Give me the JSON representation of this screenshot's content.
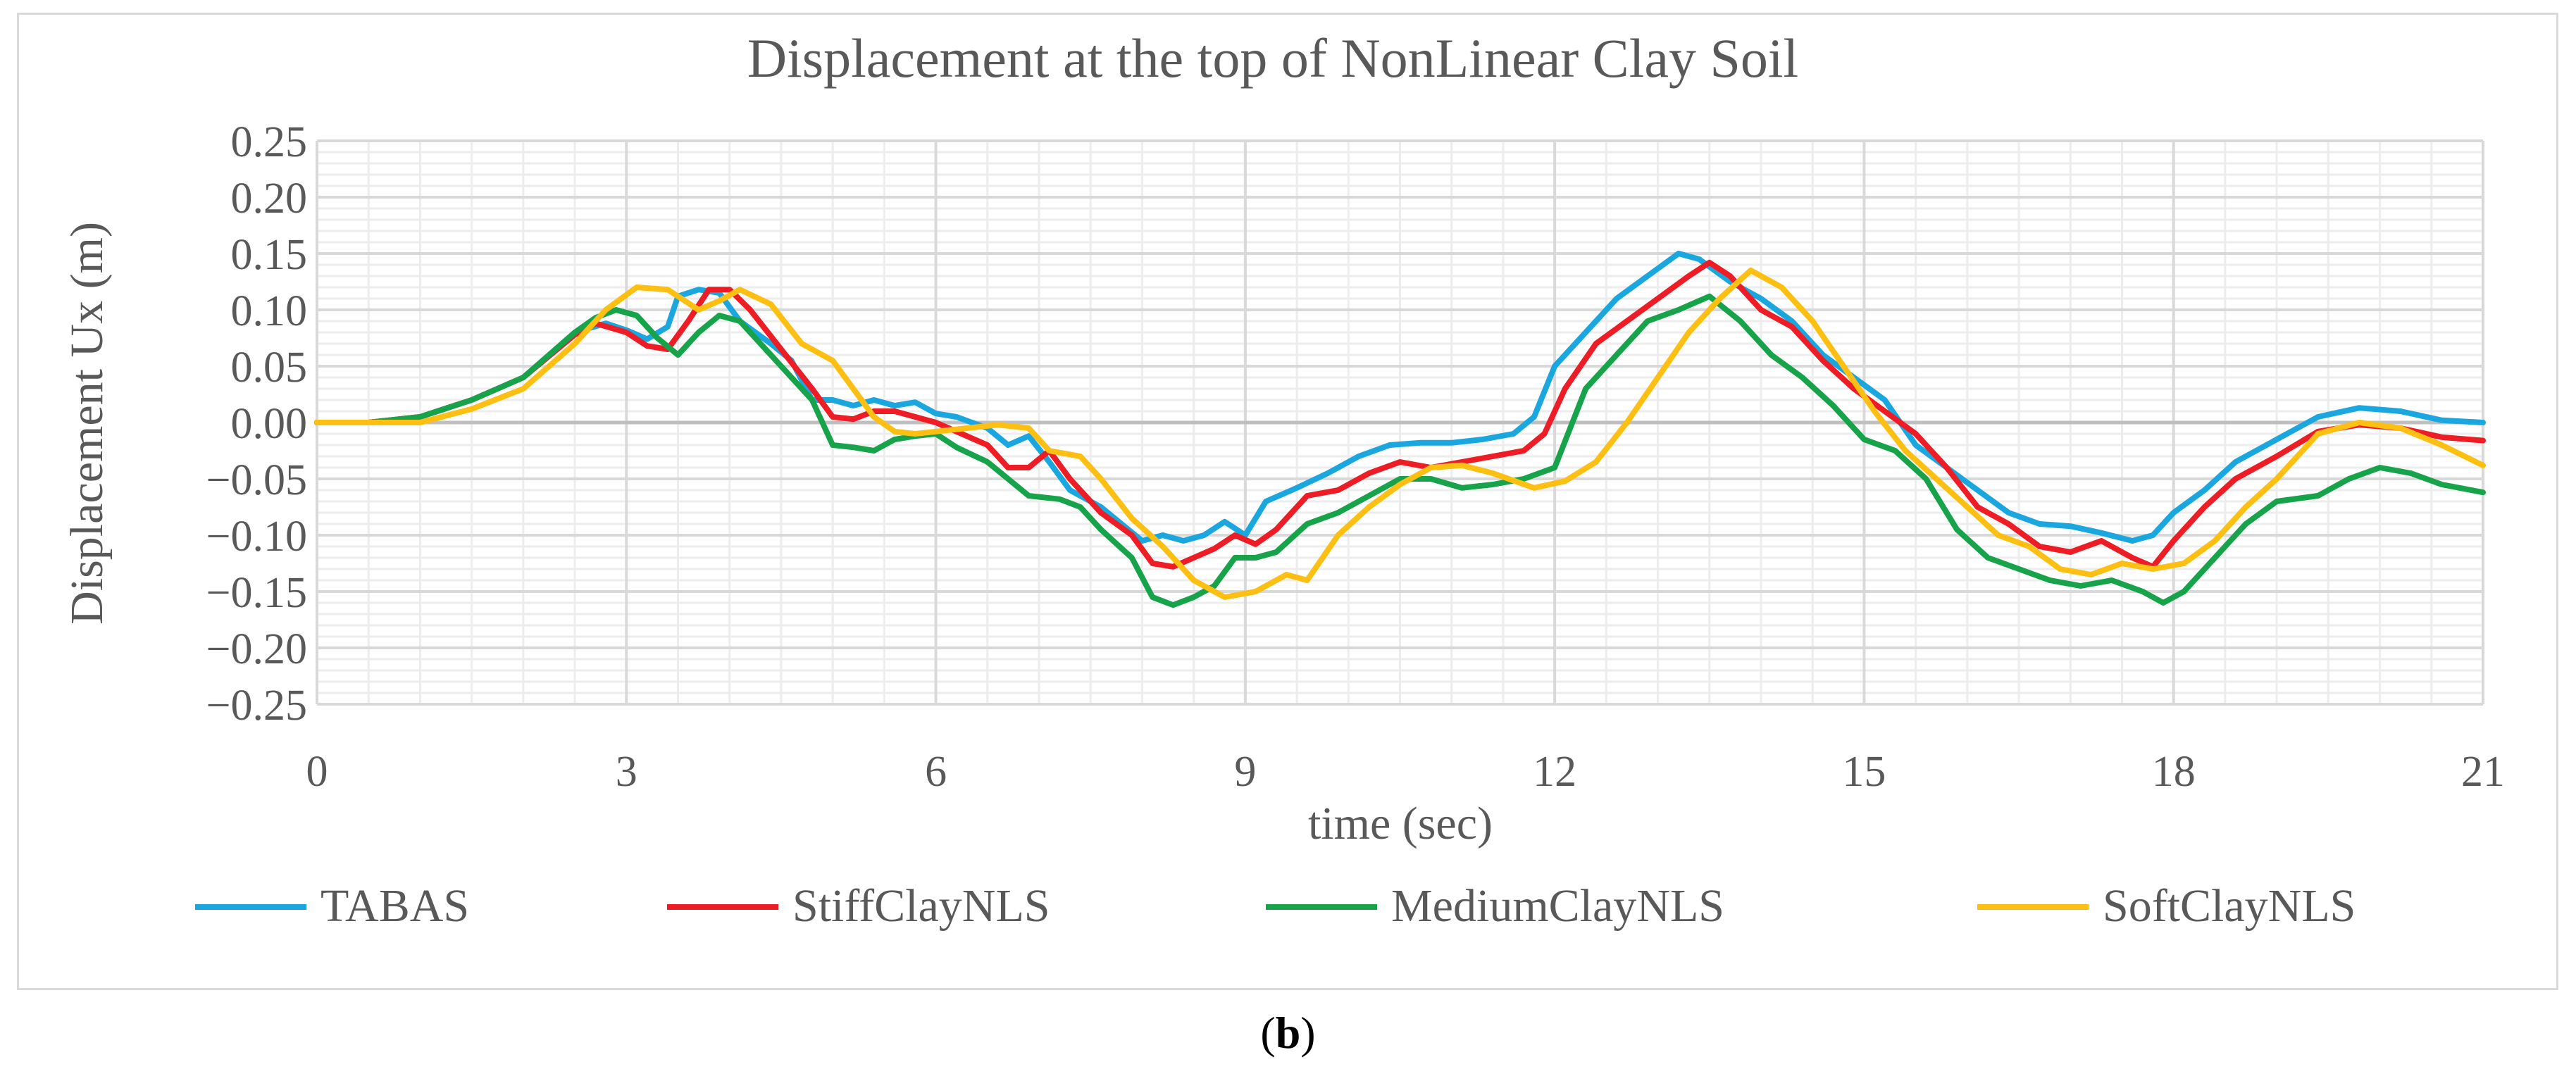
{
  "chart_data": {
    "type": "line",
    "title": "Displacement at the top of NonLinear Clay Soil",
    "xlabel": "time (sec)",
    "ylabel": "Displacement Ux (m)",
    "xlim": [
      0,
      21
    ],
    "ylim": [
      -0.25,
      0.25
    ],
    "x_ticks": [
      0,
      3,
      6,
      9,
      12,
      15,
      18,
      21
    ],
    "x_tick_labels": [
      "0",
      "3",
      "6",
      "9",
      "12",
      "15",
      "18",
      "21"
    ],
    "y_ticks": [
      0.25,
      0.2,
      0.15,
      0.1,
      0.05,
      0,
      -0.05,
      -0.1,
      -0.15,
      -0.2,
      -0.25
    ],
    "y_tick_labels": [
      "0.25",
      "0.20",
      "0.15",
      "0.10",
      "0.05",
      "0.00",
      "−0.05",
      "−0.10",
      "−0.15",
      "−0.20",
      "−0.25"
    ],
    "grid": true,
    "legend_position": "bottom",
    "series": [
      {
        "name": "TABAS",
        "color": "#1aa7e0",
        "points": [
          [
            0,
            0
          ],
          [
            0.5,
            0
          ],
          [
            1,
            0.005
          ],
          [
            1.5,
            0.02
          ],
          [
            2,
            0.04
          ],
          [
            2.5,
            0.08
          ],
          [
            2.8,
            0.088
          ],
          [
            3,
            0.082
          ],
          [
            3.2,
            0.074
          ],
          [
            3.4,
            0.085
          ],
          [
            3.5,
            0.112
          ],
          [
            3.7,
            0.118
          ],
          [
            3.9,
            0.115
          ],
          [
            4.1,
            0.09
          ],
          [
            4.4,
            0.07
          ],
          [
            4.6,
            0.055
          ],
          [
            4.8,
            0.02
          ],
          [
            5,
            0.02
          ],
          [
            5.2,
            0.015
          ],
          [
            5.4,
            0.02
          ],
          [
            5.6,
            0.015
          ],
          [
            5.8,
            0.018
          ],
          [
            6,
            0.008
          ],
          [
            6.2,
            0.005
          ],
          [
            6.5,
            -0.005
          ],
          [
            6.7,
            -0.02
          ],
          [
            6.9,
            -0.012
          ],
          [
            7.1,
            -0.035
          ],
          [
            7.3,
            -0.06
          ],
          [
            7.6,
            -0.075
          ],
          [
            7.8,
            -0.09
          ],
          [
            8,
            -0.105
          ],
          [
            8.2,
            -0.1
          ],
          [
            8.4,
            -0.105
          ],
          [
            8.6,
            -0.1
          ],
          [
            8.8,
            -0.088
          ],
          [
            9,
            -0.1
          ],
          [
            9.2,
            -0.07
          ],
          [
            9.5,
            -0.058
          ],
          [
            9.8,
            -0.045
          ],
          [
            10.1,
            -0.03
          ],
          [
            10.4,
            -0.02
          ],
          [
            10.7,
            -0.018
          ],
          [
            11,
            -0.018
          ],
          [
            11.3,
            -0.015
          ],
          [
            11.6,
            -0.01
          ],
          [
            11.8,
            0.005
          ],
          [
            12,
            0.05
          ],
          [
            12.3,
            0.08
          ],
          [
            12.6,
            0.11
          ],
          [
            12.9,
            0.13
          ],
          [
            13.2,
            0.15
          ],
          [
            13.4,
            0.145
          ],
          [
            13.7,
            0.125
          ],
          [
            14,
            0.11
          ],
          [
            14.3,
            0.09
          ],
          [
            14.6,
            0.06
          ],
          [
            14.9,
            0.04
          ],
          [
            15.2,
            0.02
          ],
          [
            15.5,
            -0.02
          ],
          [
            15.8,
            -0.04
          ],
          [
            16.1,
            -0.06
          ],
          [
            16.4,
            -0.08
          ],
          [
            16.7,
            -0.09
          ],
          [
            17,
            -0.092
          ],
          [
            17.3,
            -0.098
          ],
          [
            17.6,
            -0.105
          ],
          [
            17.8,
            -0.1
          ],
          [
            18,
            -0.08
          ],
          [
            18.3,
            -0.06
          ],
          [
            18.6,
            -0.035
          ],
          [
            19,
            -0.015
          ],
          [
            19.4,
            0.005
          ],
          [
            19.8,
            0.013
          ],
          [
            20.2,
            0.01
          ],
          [
            20.6,
            0.002
          ],
          [
            21,
            0
          ]
        ]
      },
      {
        "name": "StiffClayNLS",
        "color": "#ee1c25",
        "points": [
          [
            0,
            0
          ],
          [
            0.5,
            0
          ],
          [
            1,
            0.005
          ],
          [
            1.5,
            0.02
          ],
          [
            2,
            0.04
          ],
          [
            2.5,
            0.078
          ],
          [
            2.7,
            0.088
          ],
          [
            3,
            0.08
          ],
          [
            3.2,
            0.068
          ],
          [
            3.4,
            0.065
          ],
          [
            3.6,
            0.09
          ],
          [
            3.8,
            0.118
          ],
          [
            4,
            0.118
          ],
          [
            4.2,
            0.1
          ],
          [
            4.5,
            0.065
          ],
          [
            4.8,
            0.03
          ],
          [
            5,
            0.005
          ],
          [
            5.2,
            0.003
          ],
          [
            5.4,
            0.01
          ],
          [
            5.6,
            0.01
          ],
          [
            5.8,
            0.005
          ],
          [
            6,
            0
          ],
          [
            6.2,
            -0.008
          ],
          [
            6.5,
            -0.02
          ],
          [
            6.7,
            -0.04
          ],
          [
            6.9,
            -0.04
          ],
          [
            7.1,
            -0.025
          ],
          [
            7.3,
            -0.05
          ],
          [
            7.6,
            -0.08
          ],
          [
            7.9,
            -0.1
          ],
          [
            8.1,
            -0.125
          ],
          [
            8.3,
            -0.128
          ],
          [
            8.5,
            -0.12
          ],
          [
            8.7,
            -0.112
          ],
          [
            8.9,
            -0.1
          ],
          [
            9.1,
            -0.108
          ],
          [
            9.3,
            -0.095
          ],
          [
            9.6,
            -0.065
          ],
          [
            9.9,
            -0.06
          ],
          [
            10.2,
            -0.045
          ],
          [
            10.5,
            -0.035
          ],
          [
            10.8,
            -0.04
          ],
          [
            11.1,
            -0.035
          ],
          [
            11.4,
            -0.03
          ],
          [
            11.7,
            -0.025
          ],
          [
            11.9,
            -0.01
          ],
          [
            12.1,
            0.03
          ],
          [
            12.4,
            0.07
          ],
          [
            12.7,
            0.09
          ],
          [
            13,
            0.11
          ],
          [
            13.3,
            0.13
          ],
          [
            13.5,
            0.142
          ],
          [
            13.7,
            0.13
          ],
          [
            14,
            0.1
          ],
          [
            14.3,
            0.085
          ],
          [
            14.6,
            0.055
          ],
          [
            14.9,
            0.03
          ],
          [
            15.2,
            0.01
          ],
          [
            15.5,
            -0.01
          ],
          [
            15.8,
            -0.04
          ],
          [
            16.1,
            -0.075
          ],
          [
            16.4,
            -0.09
          ],
          [
            16.7,
            -0.11
          ],
          [
            17,
            -0.115
          ],
          [
            17.3,
            -0.105
          ],
          [
            17.6,
            -0.12
          ],
          [
            17.8,
            -0.128
          ],
          [
            18,
            -0.105
          ],
          [
            18.3,
            -0.075
          ],
          [
            18.6,
            -0.05
          ],
          [
            19,
            -0.03
          ],
          [
            19.4,
            -0.008
          ],
          [
            19.8,
            -0.002
          ],
          [
            20.2,
            -0.005
          ],
          [
            20.6,
            -0.013
          ],
          [
            21,
            -0.016
          ]
        ]
      },
      {
        "name": "MediumClayNLS",
        "color": "#17a34a",
        "points": [
          [
            0,
            0
          ],
          [
            0.5,
            0
          ],
          [
            1,
            0.005
          ],
          [
            1.5,
            0.02
          ],
          [
            2,
            0.04
          ],
          [
            2.5,
            0.08
          ],
          [
            2.7,
            0.093
          ],
          [
            2.9,
            0.1
          ],
          [
            3.1,
            0.095
          ],
          [
            3.3,
            0.075
          ],
          [
            3.5,
            0.06
          ],
          [
            3.7,
            0.08
          ],
          [
            3.9,
            0.095
          ],
          [
            4.1,
            0.09
          ],
          [
            4.4,
            0.06
          ],
          [
            4.6,
            0.04
          ],
          [
            4.8,
            0.02
          ],
          [
            5,
            -0.02
          ],
          [
            5.2,
            -0.022
          ],
          [
            5.4,
            -0.025
          ],
          [
            5.6,
            -0.015
          ],
          [
            5.8,
            -0.012
          ],
          [
            6,
            -0.01
          ],
          [
            6.2,
            -0.022
          ],
          [
            6.5,
            -0.035
          ],
          [
            6.7,
            -0.05
          ],
          [
            6.9,
            -0.065
          ],
          [
            7.2,
            -0.068
          ],
          [
            7.4,
            -0.075
          ],
          [
            7.6,
            -0.095
          ],
          [
            7.9,
            -0.12
          ],
          [
            8.1,
            -0.155
          ],
          [
            8.3,
            -0.162
          ],
          [
            8.5,
            -0.155
          ],
          [
            8.7,
            -0.145
          ],
          [
            8.9,
            -0.12
          ],
          [
            9.1,
            -0.12
          ],
          [
            9.3,
            -0.115
          ],
          [
            9.6,
            -0.09
          ],
          [
            9.9,
            -0.08
          ],
          [
            10.2,
            -0.065
          ],
          [
            10.5,
            -0.05
          ],
          [
            10.8,
            -0.05
          ],
          [
            11.1,
            -0.058
          ],
          [
            11.4,
            -0.055
          ],
          [
            11.7,
            -0.05
          ],
          [
            12,
            -0.04
          ],
          [
            12.3,
            0.03
          ],
          [
            12.6,
            0.06
          ],
          [
            12.9,
            0.09
          ],
          [
            13.2,
            0.1
          ],
          [
            13.5,
            0.112
          ],
          [
            13.8,
            0.09
          ],
          [
            14.1,
            0.06
          ],
          [
            14.4,
            0.04
          ],
          [
            14.7,
            0.015
          ],
          [
            15,
            -0.015
          ],
          [
            15.3,
            -0.025
          ],
          [
            15.6,
            -0.05
          ],
          [
            15.9,
            -0.095
          ],
          [
            16.2,
            -0.12
          ],
          [
            16.5,
            -0.13
          ],
          [
            16.8,
            -0.14
          ],
          [
            17.1,
            -0.145
          ],
          [
            17.4,
            -0.14
          ],
          [
            17.7,
            -0.15
          ],
          [
            17.9,
            -0.16
          ],
          [
            18.1,
            -0.15
          ],
          [
            18.4,
            -0.12
          ],
          [
            18.7,
            -0.09
          ],
          [
            19,
            -0.07
          ],
          [
            19.4,
            -0.065
          ],
          [
            19.7,
            -0.05
          ],
          [
            20,
            -0.04
          ],
          [
            20.3,
            -0.045
          ],
          [
            20.6,
            -0.055
          ],
          [
            21,
            -0.062
          ]
        ]
      },
      {
        "name": "SoftClayNLS",
        "color": "#fdbf11",
        "points": [
          [
            0,
            0
          ],
          [
            0.5,
            0
          ],
          [
            1,
            0
          ],
          [
            1.5,
            0.012
          ],
          [
            2,
            0.03
          ],
          [
            2.5,
            0.07
          ],
          [
            2.8,
            0.1
          ],
          [
            3.1,
            0.12
          ],
          [
            3.4,
            0.118
          ],
          [
            3.7,
            0.1
          ],
          [
            3.9,
            0.108
          ],
          [
            4.1,
            0.118
          ],
          [
            4.4,
            0.105
          ],
          [
            4.7,
            0.07
          ],
          [
            5,
            0.055
          ],
          [
            5.2,
            0.03
          ],
          [
            5.4,
            0.005
          ],
          [
            5.6,
            -0.008
          ],
          [
            5.8,
            -0.01
          ],
          [
            6,
            -0.008
          ],
          [
            6.3,
            -0.005
          ],
          [
            6.6,
            -0.002
          ],
          [
            6.9,
            -0.005
          ],
          [
            7.1,
            -0.025
          ],
          [
            7.4,
            -0.03
          ],
          [
            7.6,
            -0.05
          ],
          [
            7.9,
            -0.085
          ],
          [
            8.2,
            -0.11
          ],
          [
            8.5,
            -0.14
          ],
          [
            8.8,
            -0.155
          ],
          [
            9.1,
            -0.15
          ],
          [
            9.4,
            -0.135
          ],
          [
            9.6,
            -0.14
          ],
          [
            9.9,
            -0.1
          ],
          [
            10.2,
            -0.075
          ],
          [
            10.5,
            -0.055
          ],
          [
            10.8,
            -0.04
          ],
          [
            11.1,
            -0.038
          ],
          [
            11.4,
            -0.045
          ],
          [
            11.8,
            -0.058
          ],
          [
            12.1,
            -0.052
          ],
          [
            12.4,
            -0.035
          ],
          [
            12.7,
            0
          ],
          [
            13,
            0.04
          ],
          [
            13.3,
            0.08
          ],
          [
            13.6,
            0.11
          ],
          [
            13.9,
            0.135
          ],
          [
            14.2,
            0.12
          ],
          [
            14.5,
            0.09
          ],
          [
            14.8,
            0.05
          ],
          [
            15.1,
            0.01
          ],
          [
            15.4,
            -0.025
          ],
          [
            15.7,
            -0.05
          ],
          [
            16,
            -0.075
          ],
          [
            16.3,
            -0.1
          ],
          [
            16.6,
            -0.11
          ],
          [
            16.9,
            -0.13
          ],
          [
            17.2,
            -0.135
          ],
          [
            17.5,
            -0.125
          ],
          [
            17.8,
            -0.13
          ],
          [
            18.1,
            -0.125
          ],
          [
            18.4,
            -0.105
          ],
          [
            18.7,
            -0.075
          ],
          [
            19,
            -0.05
          ],
          [
            19.4,
            -0.01
          ],
          [
            19.8,
            0
          ],
          [
            20.2,
            -0.005
          ],
          [
            20.6,
            -0.02
          ],
          [
            21,
            -0.038
          ]
        ]
      }
    ]
  },
  "caption": {
    "open": "(",
    "letter": "b",
    "close": ")"
  }
}
